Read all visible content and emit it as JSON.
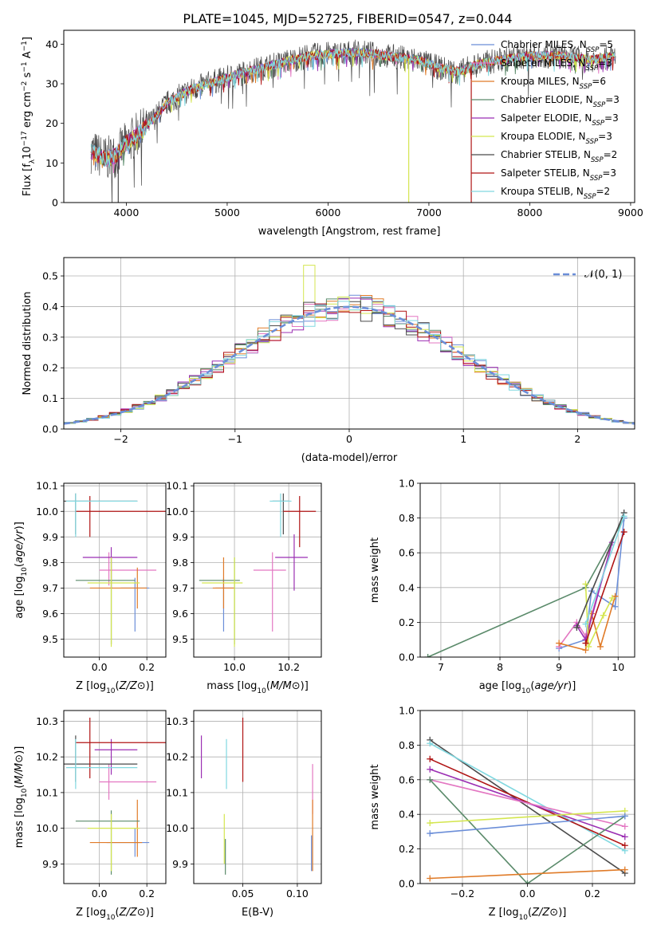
{
  "figure_title": "PLATE=1045, MJD=52725, FIBERID=0547, z=0.044",
  "colors": {
    "Chabrier MILES": "#6b8ed8",
    "Salpeter MILES": "#e377c2",
    "Kroupa MILES": "#e07b28",
    "Chabrier ELODIE": "#5a8a6a",
    "Salpeter ELODIE": "#9b2fb3",
    "Kroupa ELODIE": "#d4e64f",
    "Chabrier STELIB": "#4a4a4a",
    "Salpeter STELIB": "#b01414",
    "Kroupa STELIB": "#80d8e0",
    "normal_fit": "#6b8ed8",
    "grid": "#b0b0b0"
  },
  "chart_data": [
    {
      "id": "spectrum",
      "type": "line",
      "xlabel": "wavelength [Angstrom, rest frame]",
      "ylabel": "Flux [f_λ10^-17 erg cm^-2 s^-1 A^-1]",
      "xlim": [
        3380,
        9040
      ],
      "ylim": [
        0,
        43.5
      ],
      "xticks": [
        4000,
        5000,
        6000,
        7000,
        8000,
        9000
      ],
      "yticks": [
        0,
        10,
        20,
        30,
        40
      ],
      "grid": false,
      "legend_position": "top-right",
      "legend": [
        {
          "model": "Chabrier MILES",
          "label": "Chabrier MILES, N",
          "sub": "SSP",
          "tail": "=5"
        },
        {
          "model": "Salpeter MILES",
          "label": "Salpeter MILES, N",
          "sub": "SSP",
          "tail": "=3"
        },
        {
          "model": "Kroupa MILES",
          "label": "Kroupa MILES, N",
          "sub": "SSP",
          "tail": "=6"
        },
        {
          "model": "Chabrier ELODIE",
          "label": "Chabrier ELODIE, N",
          "sub": "SSP",
          "tail": "=3"
        },
        {
          "model": "Salpeter ELODIE",
          "label": "Salpeter ELODIE, N",
          "sub": "SSP",
          "tail": "=3"
        },
        {
          "model": "Kroupa ELODIE",
          "label": "Kroupa ELODIE, N",
          "sub": "SSP",
          "tail": "=3"
        },
        {
          "model": "Chabrier STELIB",
          "label": "Chabrier STELIB, N",
          "sub": "SSP",
          "tail": "=2"
        },
        {
          "model": "Salpeter STELIB",
          "label": "Salpeter STELIB, N",
          "sub": "SSP",
          "tail": "=3"
        },
        {
          "model": "Kroupa STELIB",
          "label": "Kroupa STELIB, N",
          "sub": "SSP",
          "tail": "=2"
        }
      ],
      "wavelength_range": [
        3650,
        8850
      ],
      "continuum": [
        [
          3650,
          13
        ],
        [
          3800,
          11
        ],
        [
          3900,
          12
        ],
        [
          4000,
          15
        ],
        [
          4150,
          18
        ],
        [
          4300,
          22
        ],
        [
          4400,
          25
        ],
        [
          4600,
          28
        ],
        [
          4800,
          30
        ],
        [
          5000,
          31.5
        ],
        [
          5200,
          33
        ],
        [
          5500,
          35
        ],
        [
          5800,
          37
        ],
        [
          6000,
          37.5
        ],
        [
          6300,
          38
        ],
        [
          6600,
          37
        ],
        [
          6900,
          36
        ],
        [
          7100,
          34
        ],
        [
          7300,
          33
        ],
        [
          7500,
          35
        ],
        [
          7700,
          36
        ],
        [
          8000,
          37
        ],
        [
          8300,
          37
        ],
        [
          8600,
          36
        ],
        [
          8850,
          37
        ]
      ],
      "dropouts": [
        {
          "model": "Chabrier STELIB",
          "x": 3920,
          "y": 0
        },
        {
          "model": "Kroupa ELODIE",
          "x": 6800,
          "y": 0
        },
        {
          "model": "Salpeter STELIB",
          "x": 7420,
          "y": 0
        }
      ]
    },
    {
      "id": "residuals",
      "type": "histogram",
      "xlabel": "(data-model)/error",
      "ylabel": "Normed distribution",
      "xlim": [
        -2.5,
        2.5
      ],
      "ylim": [
        0,
        0.56
      ],
      "xticks": [
        -2,
        -1,
        0,
        1,
        2
      ],
      "yticks": [
        0.0,
        0.1,
        0.2,
        0.3,
        0.4,
        0.5
      ],
      "grid": true,
      "bin_width": 0.1,
      "legend_position": "top-right",
      "fit_label": "𝒩(0, 1)",
      "highlight_bin": {
        "model": "Kroupa ELODIE",
        "x": -0.35,
        "y": 0.535
      }
    },
    {
      "id": "age_vs_Z",
      "type": "scatter",
      "xlabel": "Z [log10(Z/Z⊙)]",
      "ylabel": "age  [log10(age/yr)]",
      "xlim": [
        -0.15,
        0.28
      ],
      "ylim": [
        9.43,
        10.11
      ],
      "xticks": [
        0.0,
        0.2
      ],
      "yticks": [
        9.5,
        9.6,
        9.7,
        9.8,
        9.9,
        10.0,
        10.1
      ],
      "grid": true,
      "points": [
        {
          "model": "Chabrier MILES",
          "x": 0.15,
          "y": 9.7,
          "xerr": [
            0.06,
            0.06
          ],
          "yerr": [
            0.17,
            0.04
          ]
        },
        {
          "model": "Salpeter MILES",
          "x": 0.04,
          "y": 9.77,
          "xerr": [
            0.04,
            0.2
          ],
          "yerr": [
            0.06,
            0.07
          ]
        },
        {
          "model": "Kroupa MILES",
          "x": 0.16,
          "y": 9.7,
          "xerr": [
            0.2,
            0.04
          ],
          "yerr": [
            0.08,
            0.08
          ]
        },
        {
          "model": "Chabrier ELODIE",
          "x": 0.05,
          "y": 9.73,
          "xerr": [
            0.15,
            0.1
          ],
          "yerr": [
            0.25,
            0.09
          ]
        },
        {
          "model": "Salpeter ELODIE",
          "x": 0.05,
          "y": 9.82,
          "xerr": [
            0.12,
            0.11
          ],
          "yerr": [
            0.12,
            0.04
          ]
        },
        {
          "model": "Kroupa ELODIE",
          "x": 0.05,
          "y": 9.72,
          "xerr": [
            0.1,
            0.12
          ],
          "yerr": [
            0.25,
            0.1
          ]
        },
        {
          "model": "Chabrier STELIB",
          "x": -0.1,
          "y": 10.04,
          "xerr": [
            0.05,
            0.26
          ],
          "yerr": [
            0.13,
            0.03
          ]
        },
        {
          "model": "Salpeter STELIB",
          "x": -0.04,
          "y": 10.0,
          "xerr": [
            0.06,
            0.32
          ],
          "yerr": [
            0.1,
            0.06
          ]
        },
        {
          "model": "Kroupa STELIB",
          "x": -0.1,
          "y": 10.04,
          "xerr": [
            0.04,
            0.26
          ],
          "yerr": [
            0.14,
            0.03
          ]
        }
      ]
    },
    {
      "id": "age_vs_mass",
      "type": "scatter",
      "xlabel": "mass [log10(M/M⊙)]",
      "ylabel": "",
      "xlim": [
        9.85,
        10.32
      ],
      "ylim": [
        9.43,
        10.11
      ],
      "xticks": [
        10.0,
        10.2
      ],
      "yticks": [
        9.5,
        9.6,
        9.7,
        9.8,
        9.9,
        10.0,
        10.1
      ],
      "grid": true,
      "points": [
        {
          "model": "Chabrier MILES",
          "x": 9.96,
          "y": 9.7,
          "xerr": [
            0.03,
            0.04
          ],
          "yerr": [
            0.17,
            0.04
          ]
        },
        {
          "model": "Salpeter MILES",
          "x": 10.14,
          "y": 9.77,
          "xerr": [
            0.07,
            0.05
          ],
          "yerr": [
            0.24,
            0.07
          ]
        },
        {
          "model": "Kroupa MILES",
          "x": 9.96,
          "y": 9.7,
          "xerr": [
            0.04,
            0.04
          ],
          "yerr": [
            0.08,
            0.12
          ]
        },
        {
          "model": "Chabrier ELODIE",
          "x": 10.0,
          "y": 9.73,
          "xerr": [
            0.13,
            0.02
          ],
          "yerr": [
            0.25,
            0.09
          ]
        },
        {
          "model": "Salpeter ELODIE",
          "x": 10.22,
          "y": 9.82,
          "xerr": [
            0.07,
            0.05
          ],
          "yerr": [
            0.13,
            0.09
          ]
        },
        {
          "model": "Kroupa ELODIE",
          "x": 10.0,
          "y": 9.72,
          "xerr": [
            0.12,
            0.03
          ],
          "yerr": [
            0.25,
            0.1
          ]
        },
        {
          "model": "Chabrier STELIB",
          "x": 10.18,
          "y": 10.04,
          "xerr": [
            0.04,
            0.02
          ],
          "yerr": [
            0.13,
            0.03
          ]
        },
        {
          "model": "Salpeter STELIB",
          "x": 10.24,
          "y": 10.0,
          "xerr": [
            0.06,
            0.06
          ],
          "yerr": [
            0.14,
            0.06
          ]
        },
        {
          "model": "Kroupa STELIB",
          "x": 10.17,
          "y": 10.04,
          "xerr": [
            0.04,
            0.04
          ],
          "yerr": [
            0.14,
            0.03
          ]
        }
      ]
    },
    {
      "id": "weight_vs_age",
      "type": "line",
      "xlabel": "age  [log10(age/yr)]",
      "ylabel": "mass weight",
      "xlim": [
        6.65,
        10.28
      ],
      "ylim": [
        0,
        1.0
      ],
      "xticks": [
        7,
        8,
        9,
        10
      ],
      "yticks": [
        0.0,
        0.2,
        0.4,
        0.6,
        0.8,
        1.0
      ],
      "grid": true,
      "series": [
        {
          "model": "Chabrier ELODIE",
          "x": [
            6.78,
            9.45,
            10.1
          ],
          "y": [
            0.0,
            0.4,
            0.8
          ]
        },
        {
          "model": "Chabrier MILES",
          "x": [
            9.0,
            9.45,
            9.55,
            9.95,
            10.1
          ],
          "y": [
            0.05,
            0.1,
            0.38,
            0.29,
            0.8
          ]
        },
        {
          "model": "Salpeter MILES",
          "x": [
            9.0,
            9.3,
            9.45,
            9.85
          ],
          "y": [
            0.06,
            0.2,
            0.12,
            0.6
          ]
        },
        {
          "model": "Kroupa MILES",
          "x": [
            9.0,
            9.45,
            9.55,
            9.7,
            9.95
          ],
          "y": [
            0.08,
            0.04,
            0.25,
            0.06,
            0.35
          ]
        },
        {
          "model": "Salpeter ELODIE",
          "x": [
            9.3,
            9.45,
            9.9
          ],
          "y": [
            0.18,
            0.1,
            0.66
          ]
        },
        {
          "model": "Kroupa ELODIE",
          "x": [
            9.45,
            9.5,
            9.75,
            9.9
          ],
          "y": [
            0.42,
            0.06,
            0.24,
            0.34
          ]
        },
        {
          "model": "Chabrier STELIB",
          "x": [
            9.3,
            10.1
          ],
          "y": [
            0.17,
            0.83
          ]
        },
        {
          "model": "Salpeter STELIB",
          "x": [
            9.45,
            10.1
          ],
          "y": [
            0.08,
            0.72
          ]
        },
        {
          "model": "Kroupa STELIB",
          "x": [
            9.45,
            10.1
          ],
          "y": [
            0.19,
            0.81
          ]
        }
      ]
    },
    {
      "id": "mass_vs_Z",
      "type": "scatter",
      "xlabel": "Z [log10(Z/Z⊙)]",
      "ylabel": "mass [log10(M/M⊙)]",
      "xlim": [
        -0.15,
        0.28
      ],
      "ylim": [
        9.845,
        10.33
      ],
      "xticks": [
        0.0,
        0.2
      ],
      "yticks": [
        9.9,
        10.0,
        10.1,
        10.2,
        10.3
      ],
      "grid": true,
      "points": [
        {
          "model": "Chabrier MILES",
          "x": 0.15,
          "y": 9.96,
          "xerr": [
            0.12,
            0.06
          ],
          "yerr": [
            0.04,
            0.04
          ]
        },
        {
          "model": "Salpeter MILES",
          "x": 0.04,
          "y": 10.13,
          "xerr": [
            0.04,
            0.2
          ],
          "yerr": [
            0.05,
            0.05
          ]
        },
        {
          "model": "Kroupa MILES",
          "x": 0.16,
          "y": 9.96,
          "xerr": [
            0.2,
            0.02
          ],
          "yerr": [
            0.04,
            0.12
          ]
        },
        {
          "model": "Chabrier ELODIE",
          "x": 0.05,
          "y": 10.02,
          "xerr": [
            0.15,
            0.12
          ],
          "yerr": [
            0.15,
            0.03
          ]
        },
        {
          "model": "Salpeter ELODIE",
          "x": 0.05,
          "y": 10.22,
          "xerr": [
            0.07,
            0.11
          ],
          "yerr": [
            0.07,
            0.03
          ]
        },
        {
          "model": "Kroupa ELODIE",
          "x": 0.05,
          "y": 10.0,
          "xerr": [
            0.1,
            0.12
          ],
          "yerr": [
            0.12,
            0.04
          ]
        },
        {
          "model": "Chabrier STELIB",
          "x": -0.1,
          "y": 10.18,
          "xerr": [
            0.05,
            0.26
          ],
          "yerr": [
            0.05,
            0.08
          ]
        },
        {
          "model": "Salpeter STELIB",
          "x": -0.04,
          "y": 10.24,
          "xerr": [
            0.06,
            0.32
          ],
          "yerr": [
            0.1,
            0.07
          ]
        },
        {
          "model": "Kroupa STELIB",
          "x": -0.1,
          "y": 10.17,
          "xerr": [
            0.04,
            0.26
          ],
          "yerr": [
            0.06,
            0.08
          ]
        }
      ]
    },
    {
      "id": "mass_vs_ebv",
      "type": "scatter",
      "xlabel": "E(B-V)",
      "ylabel": "",
      "xlim": [
        0.005,
        0.122
      ],
      "ylim": [
        9.845,
        10.33
      ],
      "xticks": [
        0.05,
        0.1
      ],
      "yticks": [
        9.9,
        10.0,
        10.1,
        10.2,
        10.3
      ],
      "grid": true,
      "points": [
        {
          "model": "Salpeter ELODIE",
          "x": 0.012,
          "y": 10.2,
          "xerr": [
            0,
            0
          ],
          "yerr": [
            0.06,
            0.06
          ]
        },
        {
          "model": "Kroupa STELIB",
          "x": 0.035,
          "y": 10.18,
          "xerr": [
            0,
            0
          ],
          "yerr": [
            0.07,
            0.07
          ]
        },
        {
          "model": "Chabrier ELODIE",
          "x": 0.034,
          "y": 9.92,
          "xerr": [
            0,
            0
          ],
          "yerr": [
            0.05,
            0.05
          ]
        },
        {
          "model": "Kroupa ELODIE",
          "x": 0.033,
          "y": 9.97,
          "xerr": [
            0,
            0
          ],
          "yerr": [
            0.07,
            0.07
          ]
        },
        {
          "model": "Salpeter STELIB",
          "x": 0.05,
          "y": 10.22,
          "xerr": [
            0,
            0
          ],
          "yerr": [
            0.09,
            0.09
          ]
        },
        {
          "model": "Salpeter MILES",
          "x": 0.114,
          "y": 10.11,
          "xerr": [
            0,
            0
          ],
          "yerr": [
            0.07,
            0.07
          ]
        },
        {
          "model": "Kroupa MILES",
          "x": 0.114,
          "y": 9.98,
          "xerr": [
            0,
            0
          ],
          "yerr": [
            0.1,
            0.1
          ]
        },
        {
          "model": "Chabrier MILES",
          "x": 0.113,
          "y": 9.93,
          "xerr": [
            0,
            0
          ],
          "yerr": [
            0.05,
            0.05
          ]
        }
      ]
    },
    {
      "id": "weight_vs_Z",
      "type": "line",
      "xlabel": "Z [log10(Z/Z⊙)]",
      "ylabel": "mass weight",
      "xlim": [
        -0.33,
        0.33
      ],
      "ylim": [
        0,
        1.0
      ],
      "xticks": [
        -0.2,
        0.0,
        0.2
      ],
      "yticks": [
        0.0,
        0.2,
        0.4,
        0.6,
        0.8,
        1.0
      ],
      "grid": true,
      "series": [
        {
          "model": "Chabrier STELIB",
          "x": [
            -0.3,
            0.3
          ],
          "y": [
            0.83,
            0.06
          ]
        },
        {
          "model": "Kroupa STELIB",
          "x": [
            -0.3,
            0.3
          ],
          "y": [
            0.81,
            0.19
          ]
        },
        {
          "model": "Salpeter STELIB",
          "x": [
            -0.3,
            0.3
          ],
          "y": [
            0.72,
            0.22
          ]
        },
        {
          "model": "Salpeter ELODIE",
          "x": [
            -0.3,
            0.3
          ],
          "y": [
            0.66,
            0.27
          ]
        },
        {
          "model": "Salpeter MILES",
          "x": [
            -0.3,
            0.3
          ],
          "y": [
            0.6,
            0.33
          ]
        },
        {
          "model": "Chabrier ELODIE",
          "x": [
            -0.3,
            0.0,
            0.3
          ],
          "y": [
            0.6,
            0.0,
            0.39
          ]
        },
        {
          "model": "Kroupa ELODIE",
          "x": [
            -0.3,
            0.3
          ],
          "y": [
            0.35,
            0.42
          ]
        },
        {
          "model": "Chabrier MILES",
          "x": [
            -0.3,
            0.3
          ],
          "y": [
            0.29,
            0.39
          ]
        },
        {
          "model": "Kroupa MILES",
          "x": [
            -0.3,
            0.3
          ],
          "y": [
            0.03,
            0.08
          ]
        }
      ]
    }
  ]
}
